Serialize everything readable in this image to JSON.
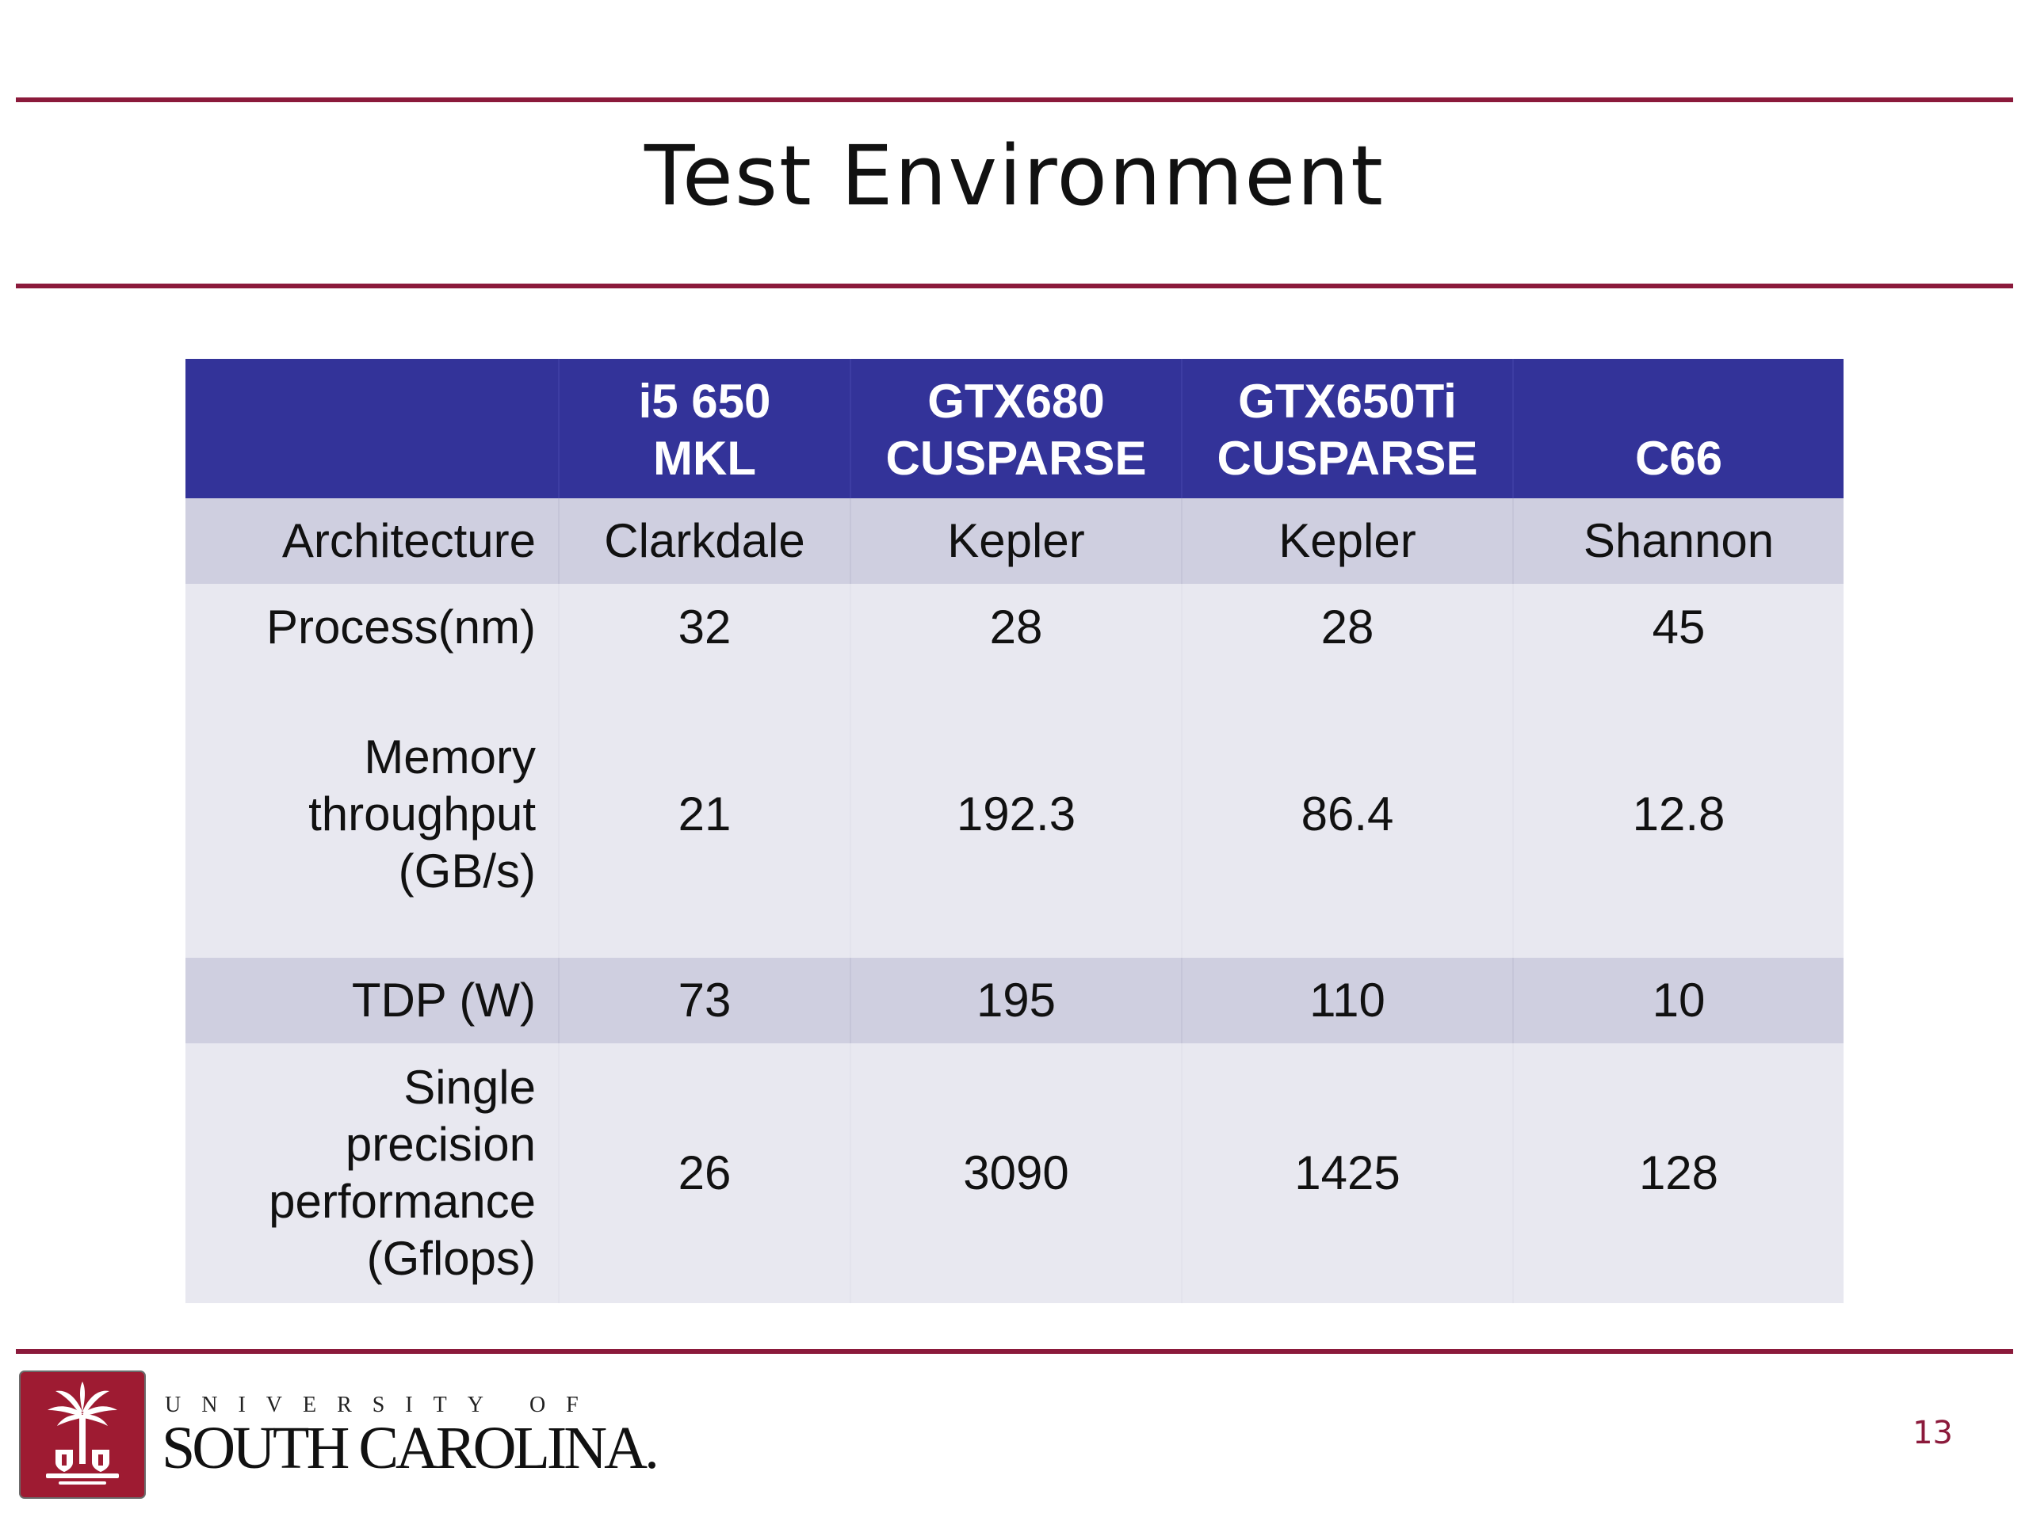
{
  "slide": {
    "title": "Test Environment",
    "page_number": "13"
  },
  "table": {
    "headers": [
      {
        "line1": "",
        "line2": ""
      },
      {
        "line1": "i5 650",
        "line2": "MKL"
      },
      {
        "line1": "GTX680",
        "line2": "CUSPARSE"
      },
      {
        "line1": "GTX650Ti",
        "line2": "CUSPARSE"
      },
      {
        "line1": "",
        "line2": "C66"
      }
    ],
    "rows": [
      {
        "label": [
          "Architecture"
        ],
        "values": [
          "Clarkdale",
          "Kepler",
          "Kepler",
          "Shannon"
        ]
      },
      {
        "label": [
          "Process(nm)"
        ],
        "values": [
          "32",
          "28",
          "28",
          "45"
        ]
      },
      {
        "label": [
          "Memory",
          "throughput",
          "(GB/s)"
        ],
        "values": [
          "21",
          "192.3",
          "86.4",
          "12.8"
        ]
      },
      {
        "label": [
          "TDP (W)"
        ],
        "values": [
          "73",
          "195",
          "110",
          "10"
        ]
      },
      {
        "label": [
          "Single",
          "precision",
          "performance",
          "(Gflops)"
        ],
        "values": [
          "26",
          "3090",
          "1425",
          "128"
        ]
      }
    ]
  },
  "footer": {
    "university_of": "UNIVERSITY OF",
    "university_name": "SOUTH CAROLINA.",
    "logo_icon": "palmetto-tree-seal-icon"
  },
  "colors": {
    "rule": "#8b1a3b",
    "table_header": "#333399",
    "row_dark": "#cfcfe0",
    "row_light": "#e8e8f0",
    "logo_red": "#9e1b32"
  }
}
